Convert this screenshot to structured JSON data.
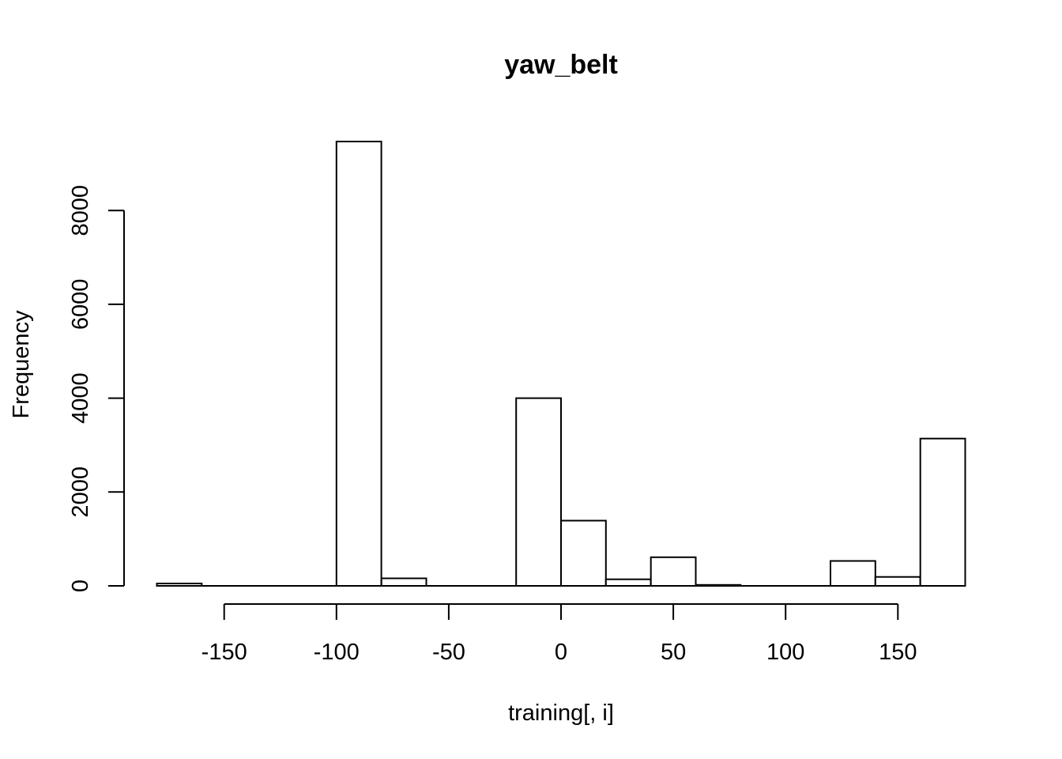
{
  "chart_data": {
    "type": "bar",
    "subtype": "histogram",
    "title": "yaw_belt",
    "xlabel": "training[, i]",
    "ylabel": "Frequency",
    "bins": [
      {
        "start": -180,
        "end": -160,
        "count": 50
      },
      {
        "start": -160,
        "end": -140,
        "count": 0
      },
      {
        "start": -140,
        "end": -120,
        "count": 0
      },
      {
        "start": -120,
        "end": -100,
        "count": 0
      },
      {
        "start": -100,
        "end": -80,
        "count": 9470
      },
      {
        "start": -80,
        "end": -60,
        "count": 160
      },
      {
        "start": -60,
        "end": -40,
        "count": 0
      },
      {
        "start": -40,
        "end": -20,
        "count": 0
      },
      {
        "start": -20,
        "end": 0,
        "count": 4000
      },
      {
        "start": 0,
        "end": 20,
        "count": 1390
      },
      {
        "start": 20,
        "end": 40,
        "count": 140
      },
      {
        "start": 40,
        "end": 60,
        "count": 610
      },
      {
        "start": 60,
        "end": 80,
        "count": 20
      },
      {
        "start": 80,
        "end": 100,
        "count": 0
      },
      {
        "start": 100,
        "end": 120,
        "count": 0
      },
      {
        "start": 120,
        "end": 140,
        "count": 530
      },
      {
        "start": 140,
        "end": 160,
        "count": 190
      },
      {
        "start": 160,
        "end": 180,
        "count": 3140
      }
    ],
    "xticks": [
      -150,
      -100,
      -50,
      0,
      50,
      100,
      150
    ],
    "xtick_labels": [
      "-150",
      "-100",
      "-50",
      "0",
      "50",
      "100",
      "150"
    ],
    "yticks": [
      0,
      2000,
      4000,
      6000,
      8000
    ],
    "ytick_labels": [
      "0",
      "2000",
      "4000",
      "6000",
      "8000"
    ],
    "xlim": [
      -180,
      180
    ],
    "ylim": [
      0,
      9470
    ],
    "grid": false,
    "legend": "none"
  }
}
